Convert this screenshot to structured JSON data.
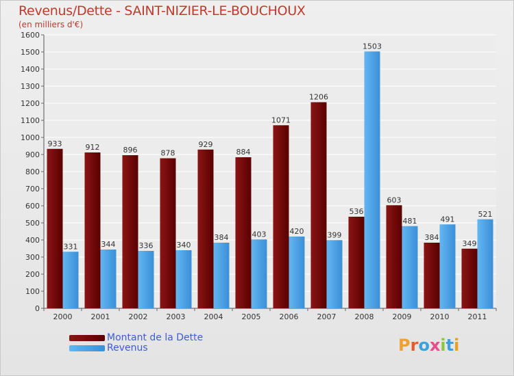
{
  "header": {
    "title": "Revenus/Dette - SAINT-NIZIER-LE-BOUCHOUX",
    "subtitle": "(en milliers d'€)"
  },
  "colors": {
    "dette": "#6b0000",
    "revenus": "#3f9ee6",
    "title": "#c0392b",
    "legend_text": "#3d5bd9"
  },
  "legend": {
    "items": [
      {
        "label": "Montant de la Dette",
        "color": "#6b0000"
      },
      {
        "label": "Revenus",
        "color": "#3f9ee6"
      }
    ]
  },
  "logo": {
    "text": "Proxiti"
  },
  "chart_data": {
    "type": "bar",
    "categories": [
      "2000",
      "2001",
      "2002",
      "2003",
      "2004",
      "2005",
      "2006",
      "2007",
      "2008",
      "2009",
      "2010",
      "2011"
    ],
    "series": [
      {
        "name": "Montant de la Dette",
        "values": [
          933,
          912,
          896,
          878,
          929,
          884,
          1071,
          1206,
          536,
          603,
          384,
          349
        ]
      },
      {
        "name": "Revenus",
        "values": [
          331,
          344,
          336,
          340,
          384,
          403,
          420,
          399,
          1503,
          481,
          491,
          521
        ]
      }
    ],
    "ylim": [
      0,
      1600
    ],
    "yticks": [
      0,
      100,
      200,
      300,
      400,
      500,
      600,
      700,
      800,
      900,
      1000,
      1100,
      1200,
      1300,
      1400,
      1500,
      1600
    ],
    "grid": true,
    "legend_position": "bottom-left"
  }
}
